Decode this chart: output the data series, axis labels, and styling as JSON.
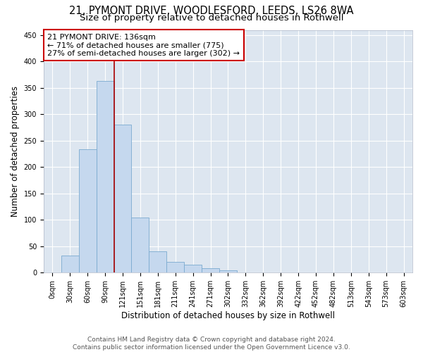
{
  "title_line1": "21, PYMONT DRIVE, WOODLESFORD, LEEDS, LS26 8WA",
  "title_line2": "Size of property relative to detached houses in Rothwell",
  "xlabel": "Distribution of detached houses by size in Rothwell",
  "ylabel": "Number of detached properties",
  "bin_labels": [
    "0sqm",
    "30sqm",
    "60sqm",
    "90sqm",
    "121sqm",
    "151sqm",
    "181sqm",
    "211sqm",
    "241sqm",
    "271sqm",
    "302sqm",
    "332sqm",
    "362sqm",
    "392sqm",
    "422sqm",
    "452sqm",
    "482sqm",
    "513sqm",
    "543sqm",
    "573sqm",
    "603sqm"
  ],
  "bar_values": [
    0,
    33,
    234,
    363,
    280,
    105,
    40,
    20,
    15,
    8,
    5,
    1,
    0,
    0,
    0,
    0,
    0,
    0,
    0,
    0,
    0
  ],
  "bar_color": "#c5d8ee",
  "bar_edge_color": "#7aaad0",
  "background_color": "#dde6f0",
  "grid_color": "#ffffff",
  "vline_color": "#aa0000",
  "vline_position": 4.5,
  "annotation_box_text": "21 PYMONT DRIVE: 136sqm\n← 71% of detached houses are smaller (775)\n27% of semi-detached houses are larger (302) →",
  "ylim": [
    0,
    460
  ],
  "yticks": [
    0,
    50,
    100,
    150,
    200,
    250,
    300,
    350,
    400,
    450
  ],
  "footer_line1": "Contains HM Land Registry data © Crown copyright and database right 2024.",
  "footer_line2": "Contains public sector information licensed under the Open Government Licence v3.0.",
  "title_fontsize": 10.5,
  "subtitle_fontsize": 9.5,
  "axis_label_fontsize": 8.5,
  "tick_fontsize": 7,
  "annot_fontsize": 8,
  "footer_fontsize": 6.5
}
